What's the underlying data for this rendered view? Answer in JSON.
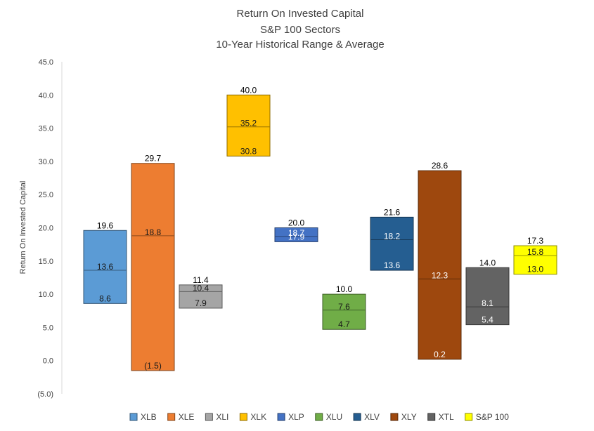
{
  "chart_data": {
    "type": "bar",
    "title_lines": [
      "Return On Invested Capital",
      "S&P 100 Sectors",
      "10-Year Historical Range & Average"
    ],
    "ylabel": "Return On Invested Capital",
    "ylim": [
      -5,
      45
    ],
    "y_ticks": [
      "45.0",
      "40.0",
      "35.0",
      "30.0",
      "25.0",
      "20.0",
      "15.0",
      "10.0",
      "5.0",
      "0.0",
      "(5.0)"
    ],
    "y_tick_values": [
      45,
      40,
      35,
      30,
      25,
      20,
      15,
      10,
      5,
      0,
      -5
    ],
    "legend_position": "bottom",
    "series": [
      {
        "name": "XLB",
        "color": "#5b9bd5",
        "high": 19.6,
        "avg": 13.6,
        "low": 8.6,
        "high_label": "19.6",
        "avg_label": "13.6",
        "low_label": "8.6"
      },
      {
        "name": "XLE",
        "color": "#ed7d31",
        "high": 29.7,
        "avg": 18.8,
        "low": -1.5,
        "high_label": "29.7",
        "avg_label": "18.8",
        "low_label": "(1.5)"
      },
      {
        "name": "XLI",
        "color": "#a5a5a5",
        "high": 11.4,
        "avg": 10.4,
        "low": 7.9,
        "high_label": "11.4",
        "avg_label": "10.4",
        "low_label": "7.9"
      },
      {
        "name": "XLK",
        "color": "#ffc000",
        "high": 40.0,
        "avg": 35.2,
        "low": 30.8,
        "high_label": "40.0",
        "avg_label": "35.2",
        "low_label": "30.8"
      },
      {
        "name": "XLP",
        "color": "#4472c4",
        "high": 20.0,
        "avg": 18.7,
        "low": 17.9,
        "high_label": "20.0",
        "avg_label": "18.7",
        "low_label": "17.9"
      },
      {
        "name": "XLU",
        "color": "#70ad47",
        "high": 10.0,
        "avg": 7.6,
        "low": 4.7,
        "high_label": "10.0",
        "avg_label": "7.6",
        "low_label": "4.7"
      },
      {
        "name": "XLV",
        "color": "#255e91",
        "high": 21.6,
        "avg": 18.2,
        "low": 13.6,
        "high_label": "21.6",
        "avg_label": "18.2",
        "low_label": "13.6"
      },
      {
        "name": "XLY",
        "color": "#9e480e",
        "high": 28.6,
        "avg": 12.3,
        "low": 0.2,
        "high_label": "28.6",
        "avg_label": "12.3",
        "low_label": "0.2"
      },
      {
        "name": "XTL",
        "color": "#636363",
        "high": 14.0,
        "avg": 8.1,
        "low": 5.4,
        "high_label": "14.0",
        "avg_label": "8.1",
        "low_label": "5.4"
      },
      {
        "name": "S&P 100",
        "color": "#ffff00",
        "high": 17.3,
        "avg": 15.8,
        "low": 13.0,
        "high_label": "17.3",
        "avg_label": "15.8",
        "low_label": "13.0"
      }
    ]
  }
}
